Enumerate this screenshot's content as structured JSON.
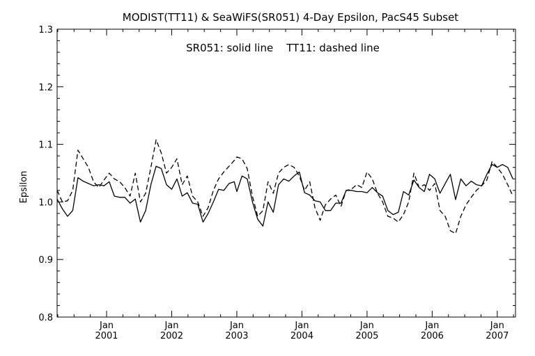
{
  "chart_data": {
    "type": "line",
    "title": "MODIST(TT11) & SeaWiFS(SR051) 4-Day Epsilon, PacS45 Subset",
    "annotation": "SR051: solid line    TT11: dashed line",
    "ylabel": "Epsilon",
    "xlabel": "",
    "ylim": [
      0.8,
      1.3
    ],
    "xlim": [
      2000.24,
      2007.28
    ],
    "y_ticks": [
      "0.8",
      "0.9",
      "1.0",
      "1.1",
      "1.2",
      "1.3"
    ],
    "x_ticks": [
      {
        "month": "Jan",
        "year": "2001"
      },
      {
        "month": "Jan",
        "year": "2002"
      },
      {
        "month": "Jan",
        "year": "2003"
      },
      {
        "month": "Jan",
        "year": "2004"
      },
      {
        "month": "Jan",
        "year": "2005"
      },
      {
        "month": "Jan",
        "year": "2006"
      },
      {
        "month": "Jan",
        "year": "2007"
      }
    ],
    "grid": false,
    "legend": "none",
    "series": [
      {
        "name": "SR051",
        "style": "solid",
        "points": [
          [
            2000.24,
            1.005
          ],
          [
            2000.32,
            0.988
          ],
          [
            2000.4,
            0.975
          ],
          [
            2000.48,
            0.985
          ],
          [
            2000.56,
            1.042
          ],
          [
            2000.64,
            1.036
          ],
          [
            2000.72,
            1.032
          ],
          [
            2000.8,
            1.028
          ],
          [
            2000.88,
            1.03
          ],
          [
            2000.96,
            1.028
          ],
          [
            2001.04,
            1.035
          ],
          [
            2001.12,
            1.01
          ],
          [
            2001.2,
            1.008
          ],
          [
            2001.28,
            1.008
          ],
          [
            2001.36,
            0.998
          ],
          [
            2001.44,
            1.005
          ],
          [
            2001.52,
            0.965
          ],
          [
            2001.6,
            0.985
          ],
          [
            2001.68,
            1.03
          ],
          [
            2001.76,
            1.062
          ],
          [
            2001.84,
            1.058
          ],
          [
            2001.92,
            1.03
          ],
          [
            2002.0,
            1.022
          ],
          [
            2002.08,
            1.04
          ],
          [
            2002.16,
            1.01
          ],
          [
            2002.24,
            1.016
          ],
          [
            2002.32,
            0.998
          ],
          [
            2002.4,
            0.996
          ],
          [
            2002.48,
            0.965
          ],
          [
            2002.56,
            0.98
          ],
          [
            2002.64,
            1.0
          ],
          [
            2002.72,
            1.022
          ],
          [
            2002.8,
            1.02
          ],
          [
            2002.88,
            1.032
          ],
          [
            2002.96,
            1.035
          ],
          [
            2003.0,
            1.018
          ],
          [
            2003.08,
            1.045
          ],
          [
            2003.16,
            1.04
          ],
          [
            2003.24,
            1.0
          ],
          [
            2003.32,
            0.97
          ],
          [
            2003.4,
            0.958
          ],
          [
            2003.48,
            1.0
          ],
          [
            2003.56,
            0.982
          ],
          [
            2003.64,
            1.03
          ],
          [
            2003.72,
            1.04
          ],
          [
            2003.8,
            1.036
          ],
          [
            2003.88,
            1.045
          ],
          [
            2003.96,
            1.052
          ],
          [
            2004.04,
            1.016
          ],
          [
            2004.12,
            1.012
          ],
          [
            2004.2,
            1.002
          ],
          [
            2004.28,
            1.0
          ],
          [
            2004.36,
            0.985
          ],
          [
            2004.44,
            0.985
          ],
          [
            2004.52,
            0.998
          ],
          [
            2004.6,
            0.998
          ],
          [
            2004.68,
            1.02
          ],
          [
            2004.76,
            1.02
          ],
          [
            2004.84,
            1.018
          ],
          [
            2004.92,
            1.018
          ],
          [
            2005.0,
            1.016
          ],
          [
            2005.08,
            1.025
          ],
          [
            2005.16,
            1.016
          ],
          [
            2005.24,
            1.01
          ],
          [
            2005.32,
            0.985
          ],
          [
            2005.4,
            0.978
          ],
          [
            2005.48,
            0.982
          ],
          [
            2005.56,
            1.018
          ],
          [
            2005.64,
            1.012
          ],
          [
            2005.72,
            1.038
          ],
          [
            2005.8,
            1.025
          ],
          [
            2005.88,
            1.018
          ],
          [
            2005.96,
            1.048
          ],
          [
            2006.04,
            1.04
          ],
          [
            2006.12,
            1.015
          ],
          [
            2006.2,
            1.032
          ],
          [
            2006.28,
            1.048
          ],
          [
            2006.36,
            1.004
          ],
          [
            2006.44,
            1.04
          ],
          [
            2006.52,
            1.028
          ],
          [
            2006.6,
            1.036
          ],
          [
            2006.68,
            1.03
          ],
          [
            2006.76,
            1.028
          ],
          [
            2006.84,
            1.048
          ],
          [
            2006.92,
            1.065
          ],
          [
            2007.0,
            1.06
          ],
          [
            2007.08,
            1.065
          ],
          [
            2007.16,
            1.06
          ],
          [
            2007.24,
            1.04
          ]
        ]
      },
      {
        "name": "TT11",
        "style": "dashed",
        "points": [
          [
            2000.24,
            1.02
          ],
          [
            2000.32,
            1.0
          ],
          [
            2000.4,
            1.002
          ],
          [
            2000.48,
            1.02
          ],
          [
            2000.56,
            1.09
          ],
          [
            2000.64,
            1.075
          ],
          [
            2000.72,
            1.06
          ],
          [
            2000.8,
            1.035
          ],
          [
            2000.88,
            1.025
          ],
          [
            2000.96,
            1.038
          ],
          [
            2001.04,
            1.05
          ],
          [
            2001.12,
            1.04
          ],
          [
            2001.2,
            1.035
          ],
          [
            2001.28,
            1.025
          ],
          [
            2001.36,
            1.01
          ],
          [
            2001.44,
            1.05
          ],
          [
            2001.52,
            1.0
          ],
          [
            2001.6,
            1.015
          ],
          [
            2001.68,
            1.06
          ],
          [
            2001.76,
            1.108
          ],
          [
            2001.84,
            1.085
          ],
          [
            2001.92,
            1.05
          ],
          [
            2002.0,
            1.06
          ],
          [
            2002.08,
            1.075
          ],
          [
            2002.16,
            1.03
          ],
          [
            2002.24,
            1.045
          ],
          [
            2002.32,
            1.01
          ],
          [
            2002.4,
            1.0
          ],
          [
            2002.48,
            0.975
          ],
          [
            2002.56,
            0.99
          ],
          [
            2002.64,
            1.02
          ],
          [
            2002.72,
            1.04
          ],
          [
            2002.8,
            1.052
          ],
          [
            2002.88,
            1.062
          ],
          [
            2002.96,
            1.072
          ],
          [
            2003.0,
            1.078
          ],
          [
            2003.08,
            1.075
          ],
          [
            2003.16,
            1.058
          ],
          [
            2003.24,
            1.01
          ],
          [
            2003.32,
            0.975
          ],
          [
            2003.4,
            0.985
          ],
          [
            2003.48,
            1.035
          ],
          [
            2003.56,
            1.015
          ],
          [
            2003.64,
            1.05
          ],
          [
            2003.72,
            1.06
          ],
          [
            2003.8,
            1.065
          ],
          [
            2003.88,
            1.06
          ],
          [
            2003.96,
            1.045
          ],
          [
            2004.04,
            1.02
          ],
          [
            2004.12,
            1.035
          ],
          [
            2004.2,
            0.99
          ],
          [
            2004.28,
            0.968
          ],
          [
            2004.36,
            0.995
          ],
          [
            2004.44,
            1.005
          ],
          [
            2004.52,
            1.012
          ],
          [
            2004.6,
            0.992
          ],
          [
            2004.68,
            1.02
          ],
          [
            2004.76,
            1.022
          ],
          [
            2004.84,
            1.03
          ],
          [
            2004.92,
            1.025
          ],
          [
            2005.0,
            1.052
          ],
          [
            2005.08,
            1.04
          ],
          [
            2005.16,
            1.015
          ],
          [
            2005.24,
            1.0
          ],
          [
            2005.32,
            0.975
          ],
          [
            2005.4,
            0.972
          ],
          [
            2005.48,
            0.965
          ],
          [
            2005.56,
            0.978
          ],
          [
            2005.64,
            1.0
          ],
          [
            2005.72,
            1.05
          ],
          [
            2005.8,
            1.025
          ],
          [
            2005.88,
            1.03
          ],
          [
            2005.96,
            1.02
          ],
          [
            2006.04,
            1.032
          ],
          [
            2006.12,
            0.985
          ],
          [
            2006.2,
            0.975
          ],
          [
            2006.28,
            0.95
          ],
          [
            2006.36,
            0.945
          ],
          [
            2006.44,
            0.975
          ],
          [
            2006.52,
            0.995
          ],
          [
            2006.6,
            1.008
          ],
          [
            2006.68,
            1.02
          ],
          [
            2006.76,
            1.028
          ],
          [
            2006.84,
            1.038
          ],
          [
            2006.92,
            1.07
          ],
          [
            2007.0,
            1.06
          ],
          [
            2007.08,
            1.048
          ],
          [
            2007.16,
            1.03
          ],
          [
            2007.24,
            1.01
          ]
        ]
      }
    ]
  }
}
